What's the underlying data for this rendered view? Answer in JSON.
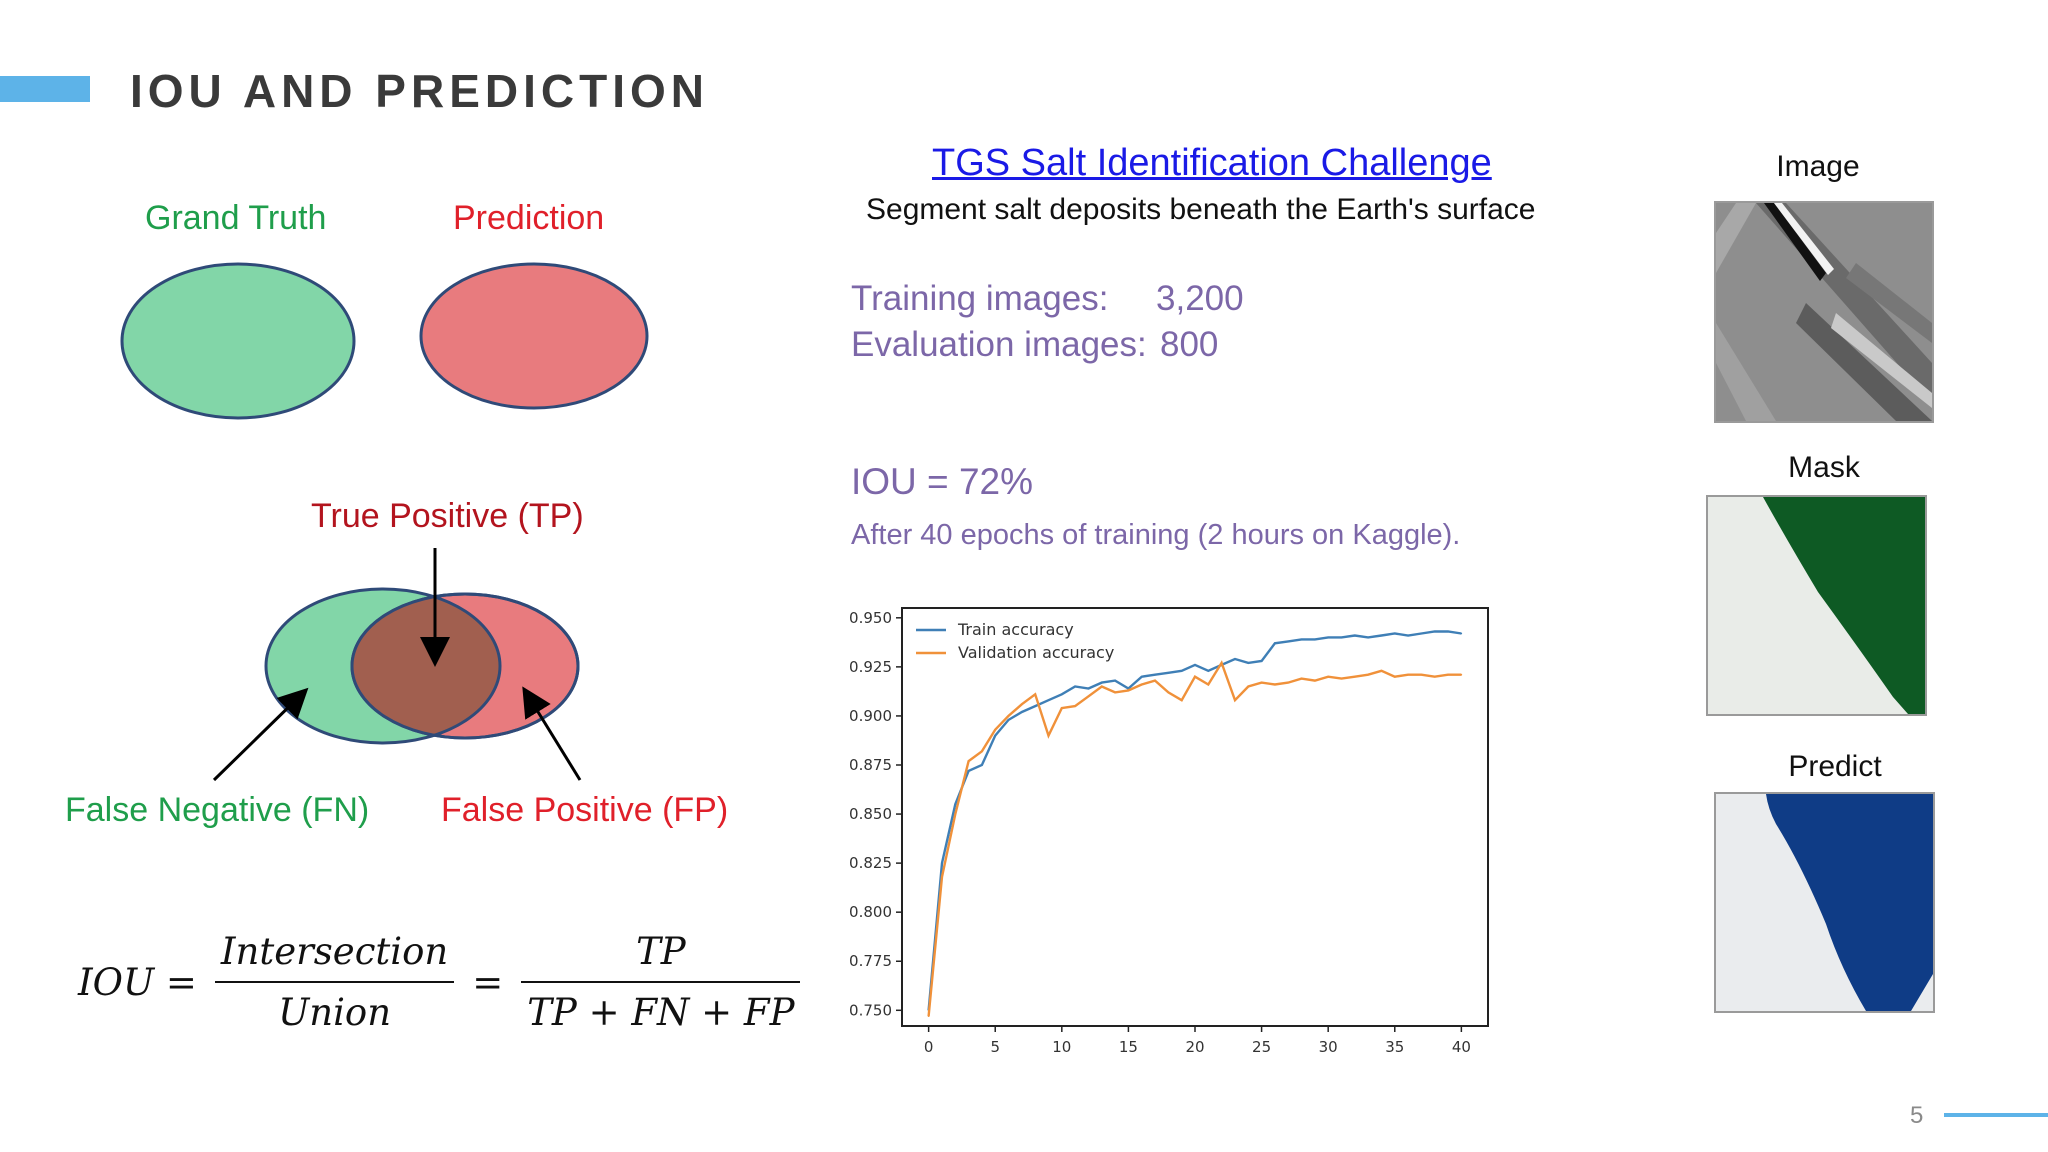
{
  "slide": {
    "title": "IOU AND PREDICTION",
    "page_number": "5",
    "accent_color": "#5db3e8"
  },
  "venn": {
    "ground_truth_label": "Grand Truth",
    "prediction_label": "Prediction",
    "tp_label": "True Positive (TP)",
    "fn_label": "False Negative (FN)",
    "fp_label": "False Positive (FP)",
    "colors": {
      "ground_truth": "#82d6a8",
      "prediction": "#e87b7e",
      "overlap": "#a15f4f",
      "outline": "#2f4a78"
    }
  },
  "formula": {
    "lhs": "IOU =",
    "frac1_num": "Intersection",
    "frac1_den": "Union",
    "eq": "=",
    "frac2_num": "TP",
    "frac2_den": "TP + FN + FP"
  },
  "challenge": {
    "link_text": "TGS Salt Identification Challenge",
    "subtitle": "Segment salt deposits beneath the Earth's surface",
    "training_label": "Training images:",
    "training_value": "3,200",
    "eval_label": "Evaluation images:",
    "eval_value": "800",
    "iou_text": "IOU = 72%",
    "epochs_text": "After 40 epochs of training (2 hours on Kaggle)."
  },
  "thumbnails": {
    "image_label": "Image",
    "mask_label": "Mask",
    "predict_label": "Predict",
    "mask_color": "#0e5a24",
    "predict_color": "#0f3c86"
  },
  "chart_data": {
    "type": "line",
    "title": "",
    "xlabel": "",
    "ylabel": "",
    "xlim": [
      -2,
      42
    ],
    "ylim": [
      0.742,
      0.955
    ],
    "xticks": [
      "0",
      "5",
      "10",
      "15",
      "20",
      "25",
      "30",
      "35",
      "40"
    ],
    "yticks": [
      "0.950",
      "0.925",
      "0.900",
      "0.875",
      "0.850",
      "0.825",
      "0.800",
      "0.775",
      "0.750"
    ],
    "legend_position": "top-left",
    "x": [
      0,
      1,
      2,
      3,
      4,
      5,
      6,
      7,
      8,
      9,
      10,
      11,
      12,
      13,
      14,
      15,
      16,
      17,
      18,
      19,
      20,
      21,
      22,
      23,
      24,
      25,
      26,
      27,
      28,
      29,
      30,
      31,
      32,
      33,
      34,
      35,
      36,
      37,
      38,
      39,
      40
    ],
    "series": [
      {
        "name": "Train accuracy",
        "color": "#3f7fb6",
        "values": [
          0.75,
          0.825,
          0.855,
          0.872,
          0.875,
          0.89,
          0.898,
          0.902,
          0.905,
          0.908,
          0.911,
          0.915,
          0.914,
          0.917,
          0.918,
          0.914,
          0.92,
          0.921,
          0.922,
          0.923,
          0.926,
          0.923,
          0.926,
          0.929,
          0.927,
          0.928,
          0.937,
          0.938,
          0.939,
          0.939,
          0.94,
          0.94,
          0.941,
          0.94,
          0.941,
          0.942,
          0.941,
          0.942,
          0.943,
          0.943,
          0.942
        ]
      },
      {
        "name": "Validation accuracy",
        "color": "#f0913a",
        "values": [
          0.747,
          0.818,
          0.85,
          0.877,
          0.882,
          0.893,
          0.9,
          0.906,
          0.911,
          0.89,
          0.904,
          0.905,
          0.91,
          0.915,
          0.912,
          0.913,
          0.916,
          0.918,
          0.912,
          0.908,
          0.92,
          0.916,
          0.927,
          0.908,
          0.915,
          0.917,
          0.916,
          0.917,
          0.919,
          0.918,
          0.92,
          0.919,
          0.92,
          0.921,
          0.923,
          0.92,
          0.921,
          0.921,
          0.92,
          0.921,
          0.921
        ]
      }
    ]
  }
}
